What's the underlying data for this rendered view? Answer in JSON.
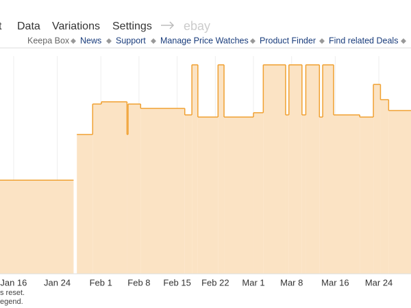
{
  "nav": {
    "tabs": [
      "t",
      "Data",
      "Variations",
      "Settings"
    ],
    "ebay": "ebay",
    "links": [
      "Keepa Box",
      "News",
      "Support",
      "Manage Price Watches",
      "Product Finder",
      "Find related Deals"
    ]
  },
  "footer": [
    "s reset.",
    "egend."
  ],
  "chart_data": {
    "type": "step-area",
    "xlim": [
      13.5,
      88.9
    ],
    "ylim": [
      0,
      100
    ],
    "xticks": [
      {
        "value": 16,
        "label": "Jan 16"
      },
      {
        "value": 24,
        "label": "Jan 24"
      },
      {
        "value": 32,
        "label": "Feb 1"
      },
      {
        "value": 39,
        "label": "Feb 8"
      },
      {
        "value": 46,
        "label": "Feb 15"
      },
      {
        "value": 53,
        "label": "Feb 22"
      },
      {
        "value": 60,
        "label": "Mar 1"
      },
      {
        "value": 67,
        "label": "Mar 8"
      },
      {
        "value": 75,
        "label": "Mar 16"
      },
      {
        "value": 83,
        "label": "Mar 24"
      }
    ],
    "grid": true,
    "series": [
      {
        "color": "#f0a030",
        "fill": "#fbe3c4",
        "x": [
          13.5,
          26.7,
          27.0,
          27.6,
          30.5,
          32.1,
          36.8,
          37.0,
          39.3,
          47.4,
          48.7,
          49.8,
          53.5,
          54.6,
          60.0,
          61.8,
          65.9,
          66.5,
          68.9,
          69.6,
          72.1,
          72.7,
          74.7,
          79.5,
          82.0,
          83.3,
          84.8
        ],
        "values": [
          43,
          43,
          null,
          64,
          78,
          79,
          64,
          78,
          76,
          73,
          96,
          72,
          96,
          72,
          74,
          96,
          73,
          96,
          73,
          96,
          72,
          96,
          73,
          72,
          87,
          80,
          75
        ]
      }
    ]
  }
}
